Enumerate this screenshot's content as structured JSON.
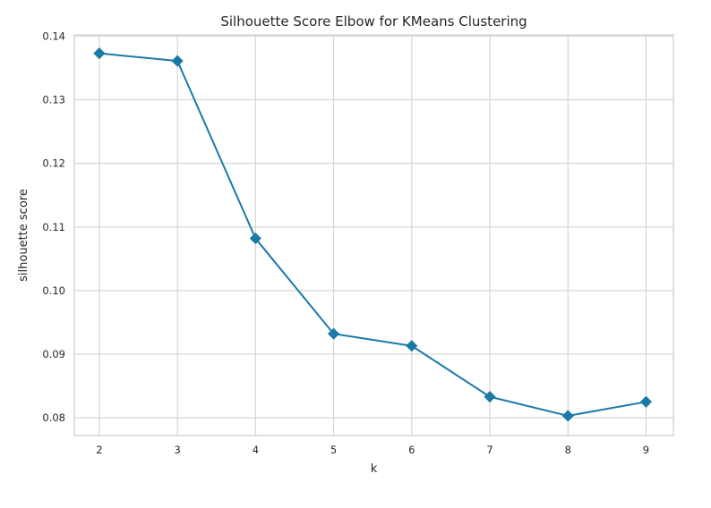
{
  "chart_data": {
    "type": "line",
    "title": "Silhouette Score Elbow for KMeans Clustering",
    "xlabel": "k",
    "ylabel": "silhouette score",
    "x": [
      2,
      3,
      4,
      5,
      6,
      7,
      8,
      9
    ],
    "x_tick_labels": [
      "2",
      "3",
      "4",
      "5",
      "6",
      "7",
      "8",
      "9"
    ],
    "y_tick_values": [
      0.08,
      0.09,
      0.1,
      0.11,
      0.12,
      0.13,
      0.14
    ],
    "y_tick_labels": [
      "0.08",
      "0.09",
      "0.10",
      "0.11",
      "0.12",
      "0.13",
      "0.14"
    ],
    "xlim": [
      1.68,
      9.35
    ],
    "ylim": [
      0.0772,
      0.1402
    ],
    "grid": true,
    "marker": "diamond",
    "color": "#1b7aa6",
    "series": [
      {
        "values": [
          0.1373,
          0.1361,
          0.1082,
          0.0932,
          0.0913,
          0.0833,
          0.0803,
          0.0825
        ]
      }
    ]
  }
}
